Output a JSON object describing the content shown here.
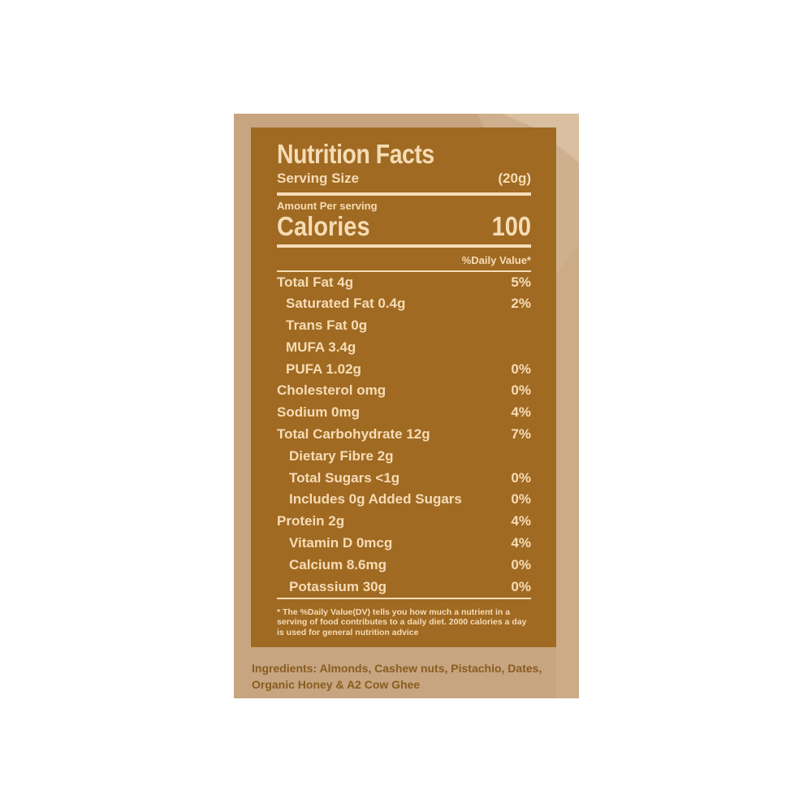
{
  "colors": {
    "panel_background": "#a06a22",
    "panel_text": "#f6dcb6",
    "package_background": "#c6a580",
    "ingredients_text": "#8a5c1f"
  },
  "nutrition": {
    "title": "Nutrition Facts",
    "serving_size_label": "Serving Size",
    "serving_size_value": "(20g)",
    "amount_per_serving": "Amount Per serving",
    "calories_label": "Calories",
    "calories_value": "100",
    "daily_value_header": "%Daily Value*",
    "rows": [
      {
        "label": "Total Fat 4g",
        "dv": "5%"
      },
      {
        "label": "Saturated Fat 0.4g",
        "dv": "2%"
      },
      {
        "label": "Trans Fat 0g",
        "dv": ""
      },
      {
        "label": "MUFA 3.4g",
        "dv": ""
      },
      {
        "label": "PUFA 1.02g",
        "dv": "0%"
      },
      {
        "label": "Cholesterol omg",
        "dv": "0%"
      },
      {
        "label": "Sodium 0mg",
        "dv": "4%"
      },
      {
        "label": "Total Carbohydrate 12g",
        "dv": "7%"
      },
      {
        "label": "Dietary Fibre 2g",
        "dv": ""
      },
      {
        "label": "Total Sugars <1g",
        "dv": "0%"
      },
      {
        "label": "Includes 0g Added Sugars",
        "dv": "0%"
      },
      {
        "label": "Protein 2g",
        "dv": "4%"
      },
      {
        "label": "Vitamin D 0mcg",
        "dv": "4%"
      },
      {
        "label": "Calcium 8.6mg",
        "dv": "0%"
      },
      {
        "label": "Potassium 30g",
        "dv": "0%"
      }
    ],
    "footnote": "* The %Daily Value(DV) tells you how much a nutrient in a serving of food contributes to a daily diet. 2000 calories a day is used for general nutrition advice"
  },
  "ingredients": "Ingredients: Almonds, Cashew nuts, Pistachio, Dates, Organic Honey & A2 Cow Ghee"
}
